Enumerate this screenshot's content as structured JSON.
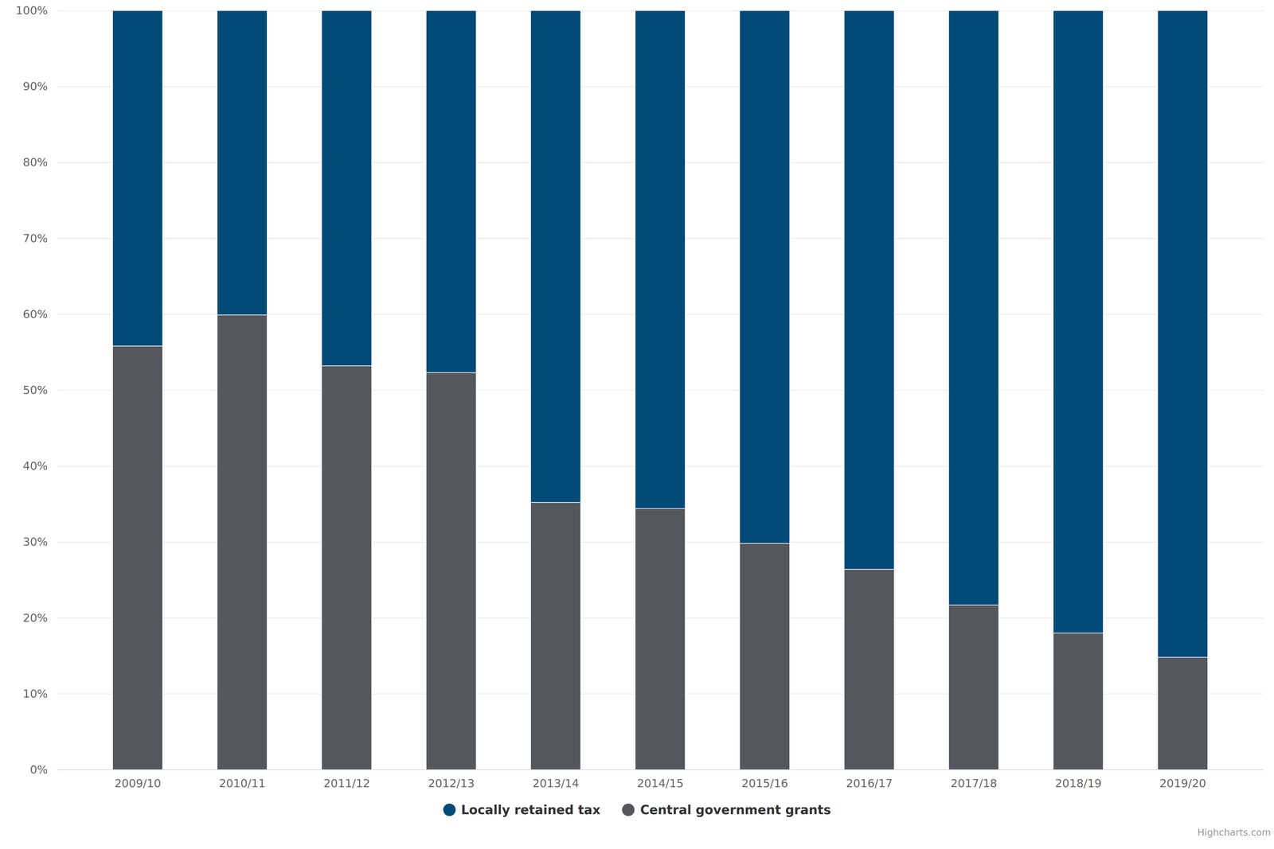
{
  "chart_data": {
    "type": "bar",
    "stacked": true,
    "grid": true,
    "legend": "bottom",
    "caption": "Highcharts.com",
    "categories": [
      "2009/10",
      "2010/11",
      "2011/12",
      "2012/13",
      "2013/14",
      "2014/15",
      "2015/16",
      "2016/17",
      "2017/18",
      "2018/19",
      "2019/20"
    ],
    "series": [
      {
        "name": "Locally retained tax",
        "color": "#004a77",
        "values": [
          44.2,
          40.1,
          46.8,
          47.7,
          64.8,
          65.6,
          70.2,
          73.6,
          78.3,
          82.0,
          85.2
        ]
      },
      {
        "name": "Central government grants",
        "color": "#54575b",
        "values": [
          55.8,
          59.9,
          53.2,
          52.3,
          35.2,
          34.4,
          29.8,
          26.4,
          21.7,
          18.0,
          14.8
        ]
      }
    ],
    "ylim": [
      0,
      100
    ],
    "yticks": [
      {
        "value": 0,
        "label": "0%"
      },
      {
        "value": 10,
        "label": "10%"
      },
      {
        "value": 20,
        "label": "20%"
      },
      {
        "value": 30,
        "label": "30%"
      },
      {
        "value": 40,
        "label": "40%"
      },
      {
        "value": 50,
        "label": "50%"
      },
      {
        "value": 60,
        "label": "60%"
      },
      {
        "value": 70,
        "label": "70%"
      },
      {
        "value": 80,
        "label": "80%"
      },
      {
        "value": 90,
        "label": "90%"
      },
      {
        "value": 100,
        "label": "100%"
      }
    ]
  }
}
